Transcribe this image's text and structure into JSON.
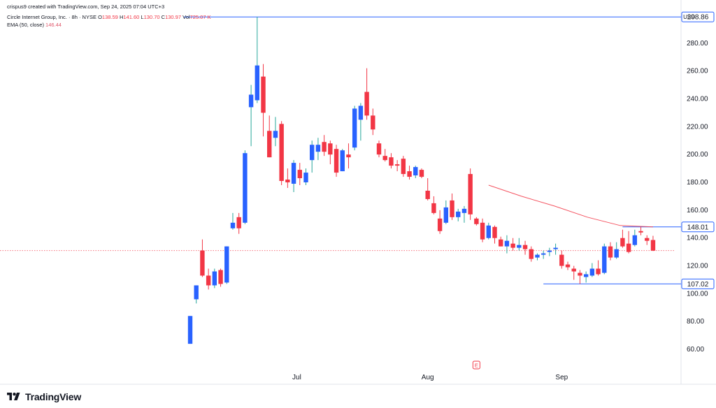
{
  "header": {
    "created_by": "crispus9 created with TradingView.com, Sep 24, 2025 07:04 UTC+3",
    "symbol": "Circle Internet Group, Inc. · 8h · NYSE",
    "o_label": "O",
    "o_value": "138.59",
    "h_label": "H",
    "h_value": "141.60",
    "l_label": "L",
    "l_value": "130.70",
    "c_label": "C",
    "c_value": "130.97",
    "vol_label": "Vol",
    "vol_value": "725.07 K",
    "ema_label": "EMA (50, close)",
    "ema_value": "146.44"
  },
  "currency": "USD",
  "brand": {
    "name": "TradingView"
  },
  "colors": {
    "up": "#2962ff",
    "down": "#f23645",
    "ema": "#f23645",
    "level": "#2962ff",
    "last_price": "#f23645"
  },
  "chart_data": {
    "type": "candlestick",
    "ylim": [
      48,
      306
    ],
    "y_ticks": [
      60,
      80,
      100,
      120,
      140,
      160,
      180,
      200,
      220,
      240,
      260,
      280
    ],
    "y_tick_labels": [
      "60.00",
      "80.00",
      "100.00",
      "120.00",
      "140.00",
      "160.00",
      "180.00",
      "200.00",
      "220.00",
      "240.00",
      "260.00",
      "280.00"
    ],
    "x_labels": [
      {
        "label": "Jul",
        "index": 17.5
      },
      {
        "label": "Aug",
        "index": 39
      },
      {
        "label": "Sep",
        "index": 61
      }
    ],
    "candles": [
      {
        "o": 64,
        "h": 84,
        "l": 64,
        "c": 84
      },
      {
        "o": 96,
        "h": 106,
        "l": 93,
        "c": 106
      },
      {
        "o": 131,
        "h": 139,
        "l": 112,
        "c": 113
      },
      {
        "o": 113,
        "h": 118,
        "l": 103,
        "c": 106
      },
      {
        "o": 106,
        "h": 118,
        "l": 104,
        "c": 116
      },
      {
        "o": 117,
        "h": 118,
        "l": 105,
        "c": 107
      },
      {
        "o": 108,
        "h": 134,
        "l": 107,
        "c": 134
      },
      {
        "o": 147,
        "h": 158,
        "l": 146,
        "c": 151
      },
      {
        "o": 155,
        "h": 158,
        "l": 143,
        "c": 147
      },
      {
        "o": 151,
        "h": 203,
        "l": 150,
        "c": 201
      },
      {
        "o": 234,
        "h": 250,
        "l": 206,
        "c": 243
      },
      {
        "o": 239,
        "h": 298.86,
        "l": 237,
        "c": 264
      },
      {
        "o": 256,
        "h": 265,
        "l": 213,
        "c": 230
      },
      {
        "o": 217,
        "h": 228,
        "l": 198,
        "c": 198
      },
      {
        "o": 212,
        "h": 227,
        "l": 206,
        "c": 217
      },
      {
        "o": 222,
        "h": 224,
        "l": 178,
        "c": 181
      },
      {
        "o": 182,
        "h": 190,
        "l": 176,
        "c": 180
      },
      {
        "o": 179,
        "h": 196,
        "l": 173,
        "c": 194
      },
      {
        "o": 189,
        "h": 194,
        "l": 178,
        "c": 183
      },
      {
        "o": 180,
        "h": 190,
        "l": 178,
        "c": 187
      },
      {
        "o": 196,
        "h": 210,
        "l": 187,
        "c": 207
      },
      {
        "o": 202,
        "h": 212,
        "l": 196,
        "c": 207
      },
      {
        "o": 209,
        "h": 214,
        "l": 199,
        "c": 202
      },
      {
        "o": 208,
        "h": 210,
        "l": 193,
        "c": 200
      },
      {
        "o": 204,
        "h": 207,
        "l": 184,
        "c": 187
      },
      {
        "o": 188,
        "h": 204,
        "l": 188,
        "c": 203
      },
      {
        "o": 200,
        "h": 208,
        "l": 190,
        "c": 198
      },
      {
        "o": 205,
        "h": 235,
        "l": 203,
        "c": 233
      },
      {
        "o": 225,
        "h": 237,
        "l": 210,
        "c": 235
      },
      {
        "o": 245,
        "h": 262,
        "l": 225,
        "c": 228
      },
      {
        "o": 228,
        "h": 233,
        "l": 214,
        "c": 218
      },
      {
        "o": 208,
        "h": 210,
        "l": 198,
        "c": 200
      },
      {
        "o": 199,
        "h": 204,
        "l": 195,
        "c": 196
      },
      {
        "o": 198,
        "h": 201,
        "l": 190,
        "c": 192
      },
      {
        "o": 193,
        "h": 196,
        "l": 188,
        "c": 192
      },
      {
        "o": 197,
        "h": 199,
        "l": 184,
        "c": 186
      },
      {
        "o": 188,
        "h": 192,
        "l": 182,
        "c": 184
      },
      {
        "o": 185,
        "h": 192,
        "l": 183,
        "c": 191
      },
      {
        "o": 189,
        "h": 190,
        "l": 183,
        "c": 184
      },
      {
        "o": 174,
        "h": 183,
        "l": 167,
        "c": 168
      },
      {
        "o": 165,
        "h": 170,
        "l": 157,
        "c": 158
      },
      {
        "o": 154,
        "h": 160,
        "l": 143,
        "c": 145
      },
      {
        "o": 151,
        "h": 167,
        "l": 150,
        "c": 162
      },
      {
        "o": 167,
        "h": 172,
        "l": 153,
        "c": 155
      },
      {
        "o": 155,
        "h": 161,
        "l": 152,
        "c": 159
      },
      {
        "o": 158,
        "h": 163,
        "l": 151,
        "c": 161
      },
      {
        "o": 186,
        "h": 190,
        "l": 153,
        "c": 157
      },
      {
        "o": 154,
        "h": 155,
        "l": 149,
        "c": 150
      },
      {
        "o": 151,
        "h": 154,
        "l": 137,
        "c": 139
      },
      {
        "o": 140,
        "h": 151,
        "l": 139,
        "c": 149
      },
      {
        "o": 148,
        "h": 149,
        "l": 136,
        "c": 140
      },
      {
        "o": 139,
        "h": 141,
        "l": 134,
        "c": 134
      },
      {
        "o": 134,
        "h": 142,
        "l": 129,
        "c": 138
      },
      {
        "o": 136,
        "h": 140,
        "l": 131,
        "c": 133
      },
      {
        "o": 133,
        "h": 140,
        "l": 131,
        "c": 135
      },
      {
        "o": 135,
        "h": 138,
        "l": 128,
        "c": 132
      },
      {
        "o": 132,
        "h": 134,
        "l": 123,
        "c": 125
      },
      {
        "o": 126,
        "h": 129,
        "l": 124,
        "c": 128
      },
      {
        "o": 128,
        "h": 131,
        "l": 125,
        "c": 129
      },
      {
        "o": 130,
        "h": 133,
        "l": 127,
        "c": 131
      },
      {
        "o": 132,
        "h": 136,
        "l": 128,
        "c": 133
      },
      {
        "o": 128,
        "h": 131,
        "l": 118,
        "c": 120
      },
      {
        "o": 121,
        "h": 123,
        "l": 117,
        "c": 119
      },
      {
        "o": 118,
        "h": 120,
        "l": 110,
        "c": 116
      },
      {
        "o": 115,
        "h": 117,
        "l": 107.02,
        "c": 113
      },
      {
        "o": 112,
        "h": 116,
        "l": 108,
        "c": 114
      },
      {
        "o": 113,
        "h": 122,
        "l": 112,
        "c": 118
      },
      {
        "o": 118,
        "h": 124,
        "l": 113,
        "c": 114
      },
      {
        "o": 115,
        "h": 136,
        "l": 114,
        "c": 134
      },
      {
        "o": 134,
        "h": 137,
        "l": 124,
        "c": 126
      },
      {
        "o": 126,
        "h": 137,
        "l": 125,
        "c": 132
      },
      {
        "o": 140,
        "h": 146,
        "l": 133,
        "c": 134
      },
      {
        "o": 136,
        "h": 145,
        "l": 129,
        "c": 130
      },
      {
        "o": 135,
        "h": 146,
        "l": 134,
        "c": 142
      },
      {
        "o": 145,
        "h": 148.01,
        "l": 142,
        "c": 144
      },
      {
        "o": 140,
        "h": 142,
        "l": 135,
        "c": 138
      },
      {
        "o": 138.59,
        "h": 141.6,
        "l": 130.7,
        "c": 130.97
      }
    ],
    "ema": {
      "name": "EMA (50, close)",
      "start_index": 49,
      "values": [
        178,
        170,
        163,
        155,
        149,
        148.01
      ]
    },
    "levels": [
      {
        "value": 298.86,
        "label": "298.86",
        "from_index": -1
      },
      {
        "value": 148.01,
        "label": "148.01",
        "from_index": 71
      },
      {
        "value": 107.02,
        "label": "107.02",
        "from_index": 58
      }
    ],
    "last_price": 130.97,
    "event_marker": {
      "label": "E",
      "index": 47
    }
  }
}
